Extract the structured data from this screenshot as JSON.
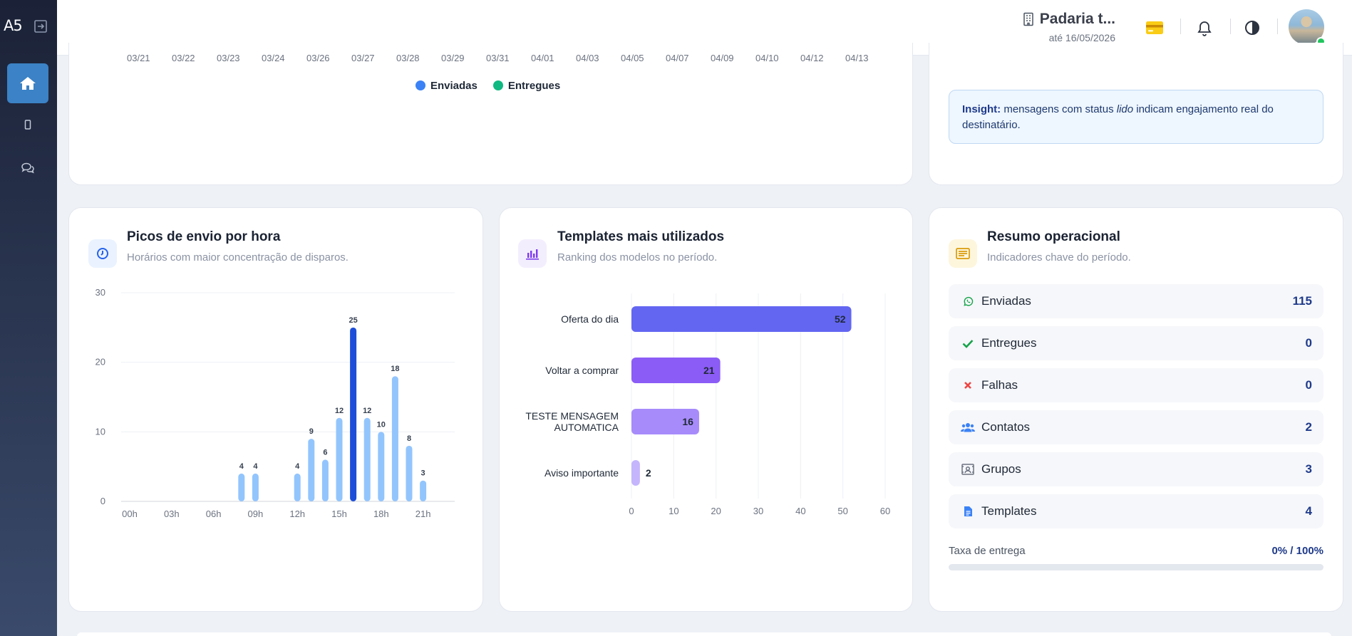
{
  "sidebar": {
    "logo": "A5",
    "items": [
      {
        "name": "home",
        "icon": "home-icon",
        "active": true
      },
      {
        "name": "devices",
        "icon": "smartphone-icon",
        "active": false
      },
      {
        "name": "chat",
        "icon": "chat-icon",
        "active": false
      }
    ]
  },
  "header": {
    "company_name": "Padaria t...",
    "valid_until": "até 16/05/2026",
    "icons": [
      "building-icon",
      "credit-card-icon",
      "bell-icon",
      "contrast-icon",
      "avatar"
    ]
  },
  "top_chart": {
    "dates": [
      "03/21",
      "03/22",
      "03/23",
      "03/24",
      "03/26",
      "03/27",
      "03/28",
      "03/29",
      "03/31",
      "04/01",
      "04/03",
      "04/05",
      "04/07",
      "04/09",
      "04/10",
      "04/12",
      "04/13"
    ],
    "legend": [
      {
        "label": "Enviadas",
        "color": "#3b82f6"
      },
      {
        "label": "Entregues",
        "color": "#10b981"
      }
    ]
  },
  "insight": {
    "label": "Insight:",
    "text_before": " mensagens com status ",
    "emphasis": "lido",
    "text_after": " indicam engajamento real do destinatário."
  },
  "hourly_card": {
    "title": "Picos de envio por hora",
    "subtitle": "Horários com maior concentração de disparos.",
    "icon": "clock-icon"
  },
  "templates_card": {
    "title": "Templates mais utilizados",
    "subtitle": "Ranking dos modelos no período.",
    "icon": "bar-chart-icon"
  },
  "summary_card": {
    "title": "Resumo operacional",
    "subtitle": "Indicadores chave do período.",
    "icon": "list-icon",
    "rows": [
      {
        "label": "Enviadas",
        "value": "115",
        "icon": "whatsapp-icon"
      },
      {
        "label": "Entregues",
        "value": "0",
        "icon": "check-icon"
      },
      {
        "label": "Falhas",
        "value": "0",
        "icon": "x-icon"
      },
      {
        "label": "Contatos",
        "value": "2",
        "icon": "users-icon"
      },
      {
        "label": "Grupos",
        "value": "3",
        "icon": "group-icon"
      },
      {
        "label": "Templates",
        "value": "4",
        "icon": "file-icon"
      }
    ],
    "rate_label": "Taxa de entrega",
    "rate_value": "0% / 100%",
    "rate_fraction": 0
  },
  "chart_data": [
    {
      "type": "bar",
      "title": "Picos de envio por hora",
      "x_ticks": [
        "00h",
        "03h",
        "06h",
        "09h",
        "12h",
        "15h",
        "18h",
        "21h"
      ],
      "y_ticks": [
        0,
        10,
        20,
        30
      ],
      "ylim": [
        0,
        30
      ],
      "categories": [
        "00h",
        "01h",
        "02h",
        "03h",
        "04h",
        "05h",
        "06h",
        "07h",
        "08h",
        "09h",
        "10h",
        "11h",
        "12h",
        "13h",
        "14h",
        "15h",
        "16h",
        "17h",
        "18h",
        "19h",
        "20h",
        "21h",
        "22h",
        "23h"
      ],
      "values": [
        0,
        0,
        0,
        0,
        0,
        0,
        0,
        0,
        4,
        4,
        0,
        0,
        4,
        9,
        6,
        12,
        25,
        12,
        10,
        18,
        8,
        3,
        0,
        0
      ],
      "highlight_index": 16,
      "colors": {
        "bar": "#93c5fd",
        "peak": "#1d4ed8"
      },
      "grid": true
    },
    {
      "type": "bar",
      "orientation": "horizontal",
      "title": "Templates mais utilizados",
      "categories": [
        "Oferta do dia",
        "Voltar a comprar",
        "TESTE MENSAGEM AUTOMATICA",
        "Aviso importante"
      ],
      "values": [
        52,
        21,
        16,
        2
      ],
      "x_ticks": [
        0,
        10,
        20,
        30,
        40,
        50,
        60
      ],
      "xlim": [
        0,
        60
      ],
      "colors": [
        "#6366f1",
        "#8b5cf6",
        "#a78bfa",
        "#c4b5fd"
      ],
      "grid": true
    }
  ]
}
